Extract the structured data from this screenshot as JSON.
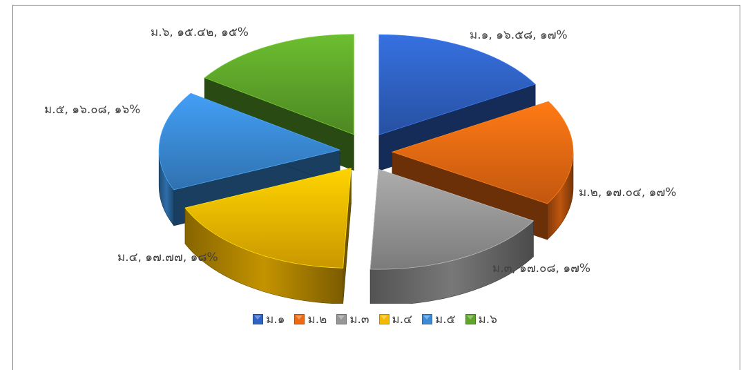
{
  "chart_data": {
    "type": "pie",
    "title": "",
    "categories": [
      "ม.๑",
      "ม.๒",
      "ม.๓",
      "ม.๔",
      "ม.๕",
      "ม.๖"
    ],
    "values": [
      16.58,
      17.04,
      17.08,
      17.77,
      16.08,
      15.42
    ],
    "percent_labels": [
      "๑๗%",
      "๑๗%",
      "๑๗%",
      "๑๘%",
      "๑๖%",
      "๑๕%"
    ],
    "data_labels": [
      "ม.๑, ๑๖.๕๘, ๑๗%",
      "ม.๒, ๑๗.๐๔, ๑๗%",
      "ม.๓, ๑๗.๐๘, ๑๗%",
      "ม.๔, ๑๗.๗๗, ๑๘%",
      "ม.๕, ๑๖.๐๘, ๑๖%",
      "ม.๖, ๑๕.๔๒, ๑๕%"
    ],
    "colors": [
      "#2f62c4",
      "#ed6a12",
      "#969696",
      "#f5b800",
      "#3a8ad6",
      "#5ea52a"
    ],
    "style": "exploded 3D pie",
    "legend_position": "bottom"
  }
}
